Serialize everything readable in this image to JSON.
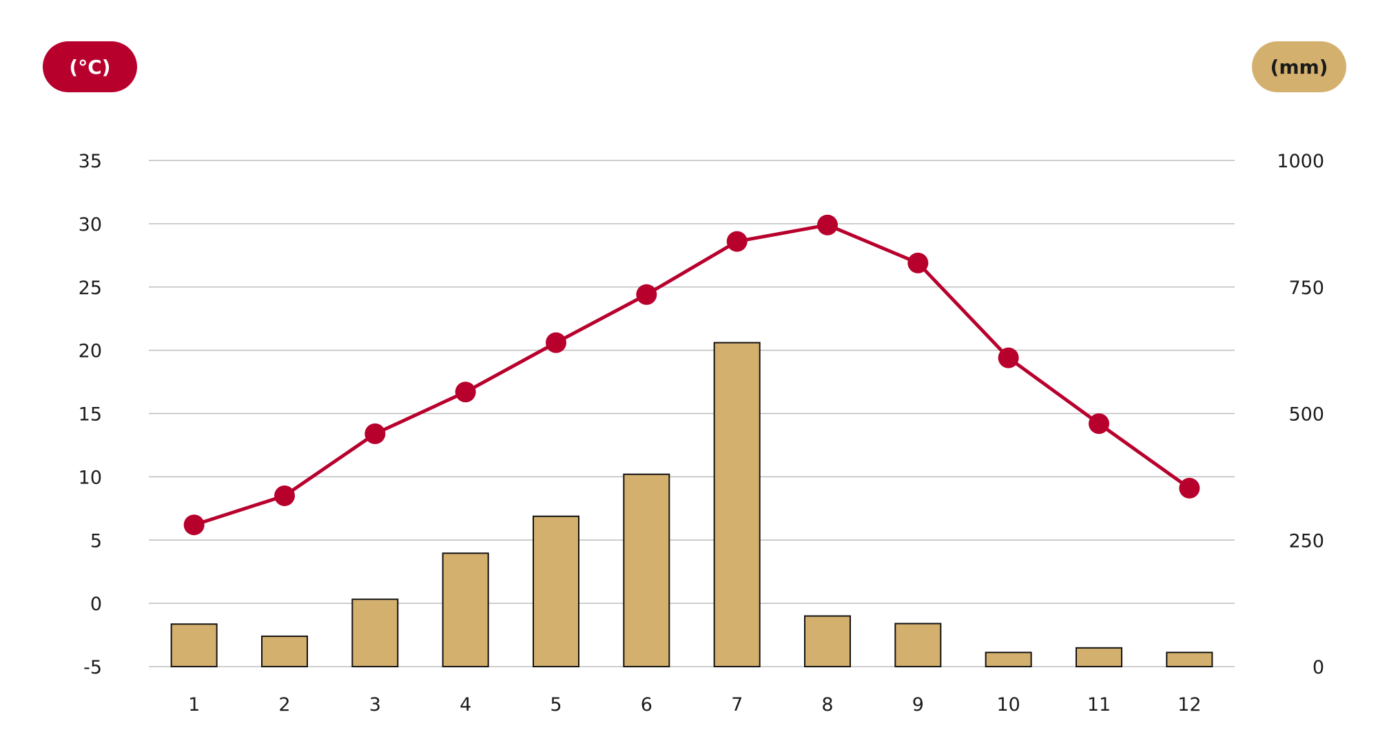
{
  "colors": {
    "temperature": "#B8002D",
    "precipitation": "#D4B06E",
    "grid": "#BDBDBD",
    "bar_outline": "#111111"
  },
  "units": {
    "left": "(°C)",
    "right": "(mm)"
  },
  "chart_data": {
    "type": "bar+line",
    "title": "",
    "xlabel": "",
    "categories": [
      "1",
      "2",
      "3",
      "4",
      "5",
      "6",
      "7",
      "8",
      "9",
      "10",
      "11",
      "12"
    ],
    "left_axis": {
      "label": "(°C)",
      "range": [
        -5,
        35
      ],
      "ticks": [
        -5,
        0,
        5,
        10,
        15,
        20,
        25,
        30,
        35
      ]
    },
    "right_axis": {
      "label": "(mm)",
      "range": [
        0,
        1000
      ],
      "ticks": [
        0,
        250,
        500,
        750,
        1000
      ]
    },
    "grid": true,
    "legend": "none",
    "series": [
      {
        "type": "line",
        "axis": "left",
        "color": "#B8002D",
        "values": [
          6.2,
          8.5,
          13.4,
          16.7,
          20.6,
          24.4,
          28.6,
          29.9,
          26.9,
          19.4,
          14.2,
          9.1
        ]
      },
      {
        "type": "bar",
        "axis": "right",
        "color": "#D4B06E",
        "values": [
          84,
          60,
          133,
          224,
          297,
          380,
          640,
          100,
          85,
          28,
          37,
          28
        ]
      }
    ]
  }
}
